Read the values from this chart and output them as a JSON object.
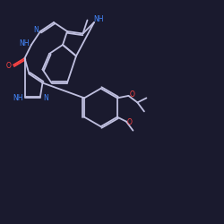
{
  "background_color": "#1a1a2e",
  "bond_color": "#c0c0e0",
  "nitrogen_color": "#4488ff",
  "oxygen_color": "#ff4444",
  "line_width": 1.3,
  "figsize": [
    2.5,
    2.5
  ],
  "dpi": 100,
  "xlim": [
    0,
    100
  ],
  "ylim": [
    0,
    100
  ]
}
